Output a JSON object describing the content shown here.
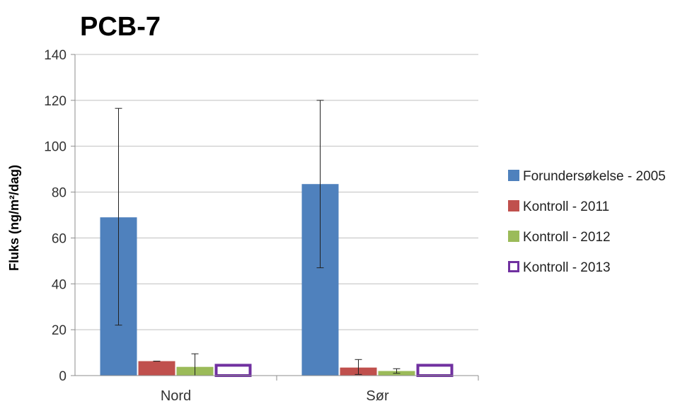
{
  "chart_data": {
    "type": "bar",
    "title": "PCB-7",
    "ylabel": "Fluks (ng/m²/dag)",
    "xlabel": "",
    "categories": [
      "Nord",
      "Sør"
    ],
    "ylim": [
      0,
      140
    ],
    "yticks": [
      0,
      20,
      40,
      60,
      80,
      100,
      120,
      140
    ],
    "grid": true,
    "legend_position": "right",
    "series": [
      {
        "name": "Forundersøkelse - 2005",
        "color": "#4F81BD",
        "style": "filled",
        "values": [
          69,
          83.5
        ],
        "errors": [
          [
            22,
            116.5
          ],
          [
            47,
            120
          ]
        ]
      },
      {
        "name": "Kontroll - 2011",
        "color": "#C0504D",
        "style": "filled",
        "values": [
          6.3,
          3.5
        ],
        "errors": [
          [
            6.3,
            6.3
          ],
          [
            0.5,
            7
          ]
        ]
      },
      {
        "name": "Kontroll - 2012",
        "color": "#9BBB59",
        "style": "filled",
        "values": [
          3.8,
          2
        ],
        "errors": [
          [
            0,
            9.5
          ],
          [
            1,
            3
          ]
        ]
      },
      {
        "name": "Kontroll - 2013",
        "color": "#7030A0",
        "style": "outline",
        "values": [
          4.5,
          4.5
        ],
        "errors": null
      }
    ]
  }
}
